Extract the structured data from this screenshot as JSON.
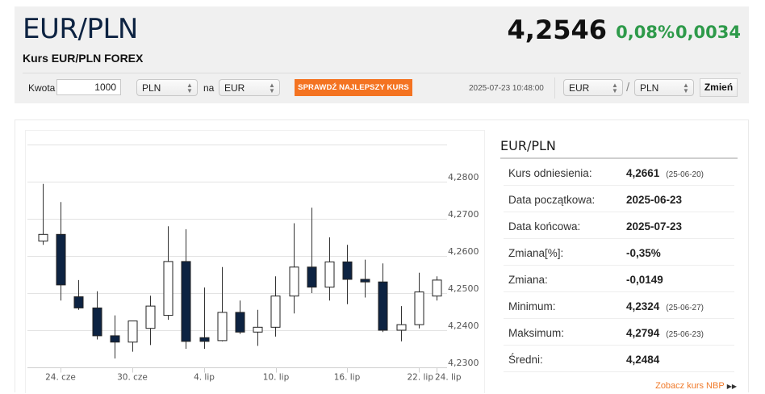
{
  "header": {
    "pair": "EUR/PLN",
    "subtitle": "Kurs EUR/PLN FOREX",
    "rate": "4,2546",
    "change_pct": "0,08%",
    "change_abs": "0,0034",
    "change_color": "#2e9a4a"
  },
  "converter": {
    "amount_label": "Kwota",
    "amount_value": "1000",
    "from_currency": "PLN",
    "to_label": "na",
    "to_currency": "EUR",
    "best_rate_button": "SPRAWDŹ NAJLEPSZY KURS",
    "best_rate_color": "#f47321",
    "timestamp": "2025-07-23 10:48:00",
    "pair_base": "EUR",
    "pair_separator": "/",
    "pair_quote": "PLN",
    "swap_button": "Zmień"
  },
  "info": {
    "title": "EUR/PLN",
    "rows": [
      {
        "label": "Kurs odniesienia:",
        "value": "4,2661",
        "date": "(25-06-20)"
      },
      {
        "label": "Data początkowa:",
        "value": "2025-06-23",
        "date": ""
      },
      {
        "label": "Data końcowa:",
        "value": "2025-07-23",
        "date": ""
      },
      {
        "label": "Zmiana[%]:",
        "value": "-0,35%",
        "date": ""
      },
      {
        "label": "Zmiana:",
        "value": "-0,0149",
        "date": ""
      },
      {
        "label": "Minimum:",
        "value": "4,2324",
        "date": "(25-06-27)"
      },
      {
        "label": "Maksimum:",
        "value": "4,2794",
        "date": "(25-06-23)"
      },
      {
        "label": "Średni:",
        "value": "4,2484",
        "date": ""
      }
    ],
    "nbp_link": "Zobacz kurs NBP"
  },
  "chart_data": {
    "type": "candlestick",
    "title": "",
    "xlabel": "",
    "ylabel": "",
    "ylim": [
      4.23,
      4.29
    ],
    "y_ticks": [
      "4,2800",
      "4,2700",
      "4,2600",
      "4,2500",
      "4,2400",
      "4,2300"
    ],
    "x_ticks": [
      "24. cze",
      "30. cze",
      "4. lip",
      "10. lip",
      "16. lip",
      "22. lip",
      "24. lip"
    ],
    "grid": true,
    "up_color": "#ffffff",
    "down_color": "#0d2342",
    "candles": [
      {
        "open": 4.264,
        "high": 4.2794,
        "low": 4.263,
        "close": 4.2658
      },
      {
        "open": 4.2658,
        "high": 4.2745,
        "low": 4.248,
        "close": 4.2522
      },
      {
        "open": 4.249,
        "high": 4.2535,
        "low": 4.2455,
        "close": 4.246
      },
      {
        "open": 4.246,
        "high": 4.2505,
        "low": 4.2375,
        "close": 4.2385
      },
      {
        "open": 4.2385,
        "high": 4.244,
        "low": 4.2324,
        "close": 4.2368
      },
      {
        "open": 4.2368,
        "high": 4.241,
        "low": 4.2342,
        "close": 4.2425
      },
      {
        "open": 4.2405,
        "high": 4.2493,
        "low": 4.236,
        "close": 4.2465
      },
      {
        "open": 4.244,
        "high": 4.268,
        "low": 4.2428,
        "close": 4.2585
      },
      {
        "open": 4.2585,
        "high": 4.2672,
        "low": 4.235,
        "close": 4.237
      },
      {
        "open": 4.238,
        "high": 4.2515,
        "low": 4.235,
        "close": 4.237
      },
      {
        "open": 4.2372,
        "high": 4.257,
        "low": 4.237,
        "close": 4.2448
      },
      {
        "open": 4.2448,
        "high": 4.248,
        "low": 4.239,
        "close": 4.2395
      },
      {
        "open": 4.2395,
        "high": 4.2455,
        "low": 4.2358,
        "close": 4.2408
      },
      {
        "open": 4.2408,
        "high": 4.2545,
        "low": 4.2383,
        "close": 4.2492
      },
      {
        "open": 4.2492,
        "high": 4.2688,
        "low": 4.2445,
        "close": 4.257
      },
      {
        "open": 4.257,
        "high": 4.273,
        "low": 4.25,
        "close": 4.2516
      },
      {
        "open": 4.2516,
        "high": 4.265,
        "low": 4.248,
        "close": 4.2584
      },
      {
        "open": 4.2584,
        "high": 4.263,
        "low": 4.247,
        "close": 4.2537
      },
      {
        "open": 4.2537,
        "high": 4.259,
        "low": 4.2488,
        "close": 4.253
      },
      {
        "open": 4.253,
        "high": 4.258,
        "low": 4.2395,
        "close": 4.24
      },
      {
        "open": 4.24,
        "high": 4.2465,
        "low": 4.237,
        "close": 4.2415
      },
      {
        "open": 4.2415,
        "high": 4.2555,
        "low": 4.2405,
        "close": 4.2503
      },
      {
        "open": 4.2492,
        "high": 4.2545,
        "low": 4.248,
        "close": 4.2535
      }
    ]
  }
}
